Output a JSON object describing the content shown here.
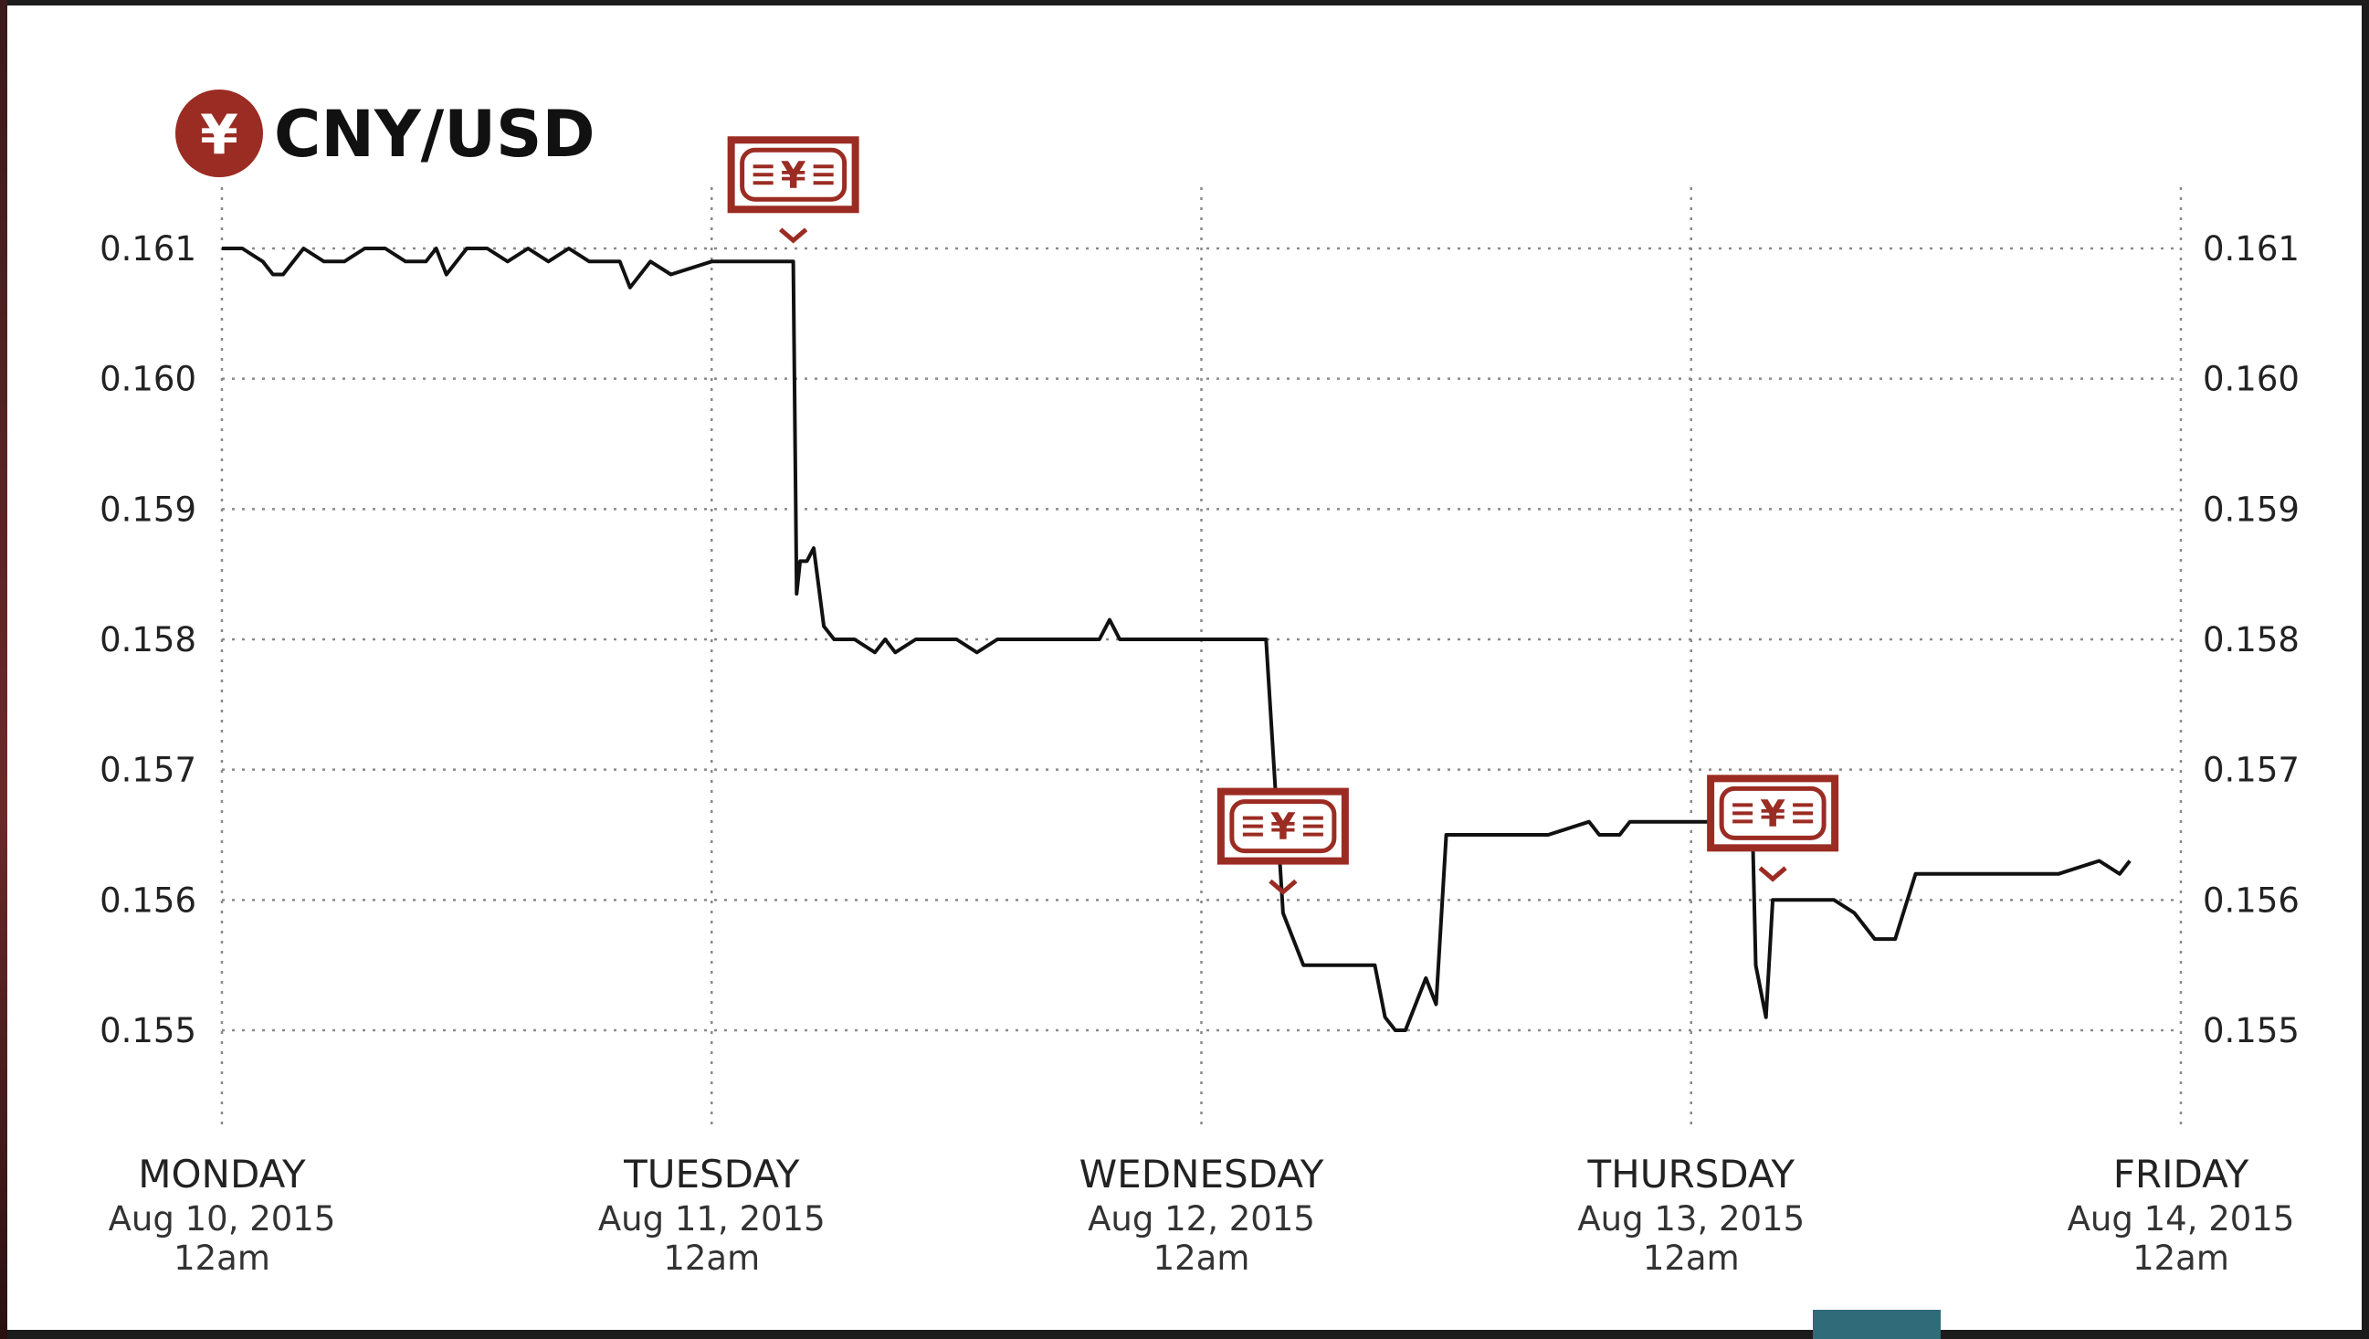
{
  "chart_data": {
    "type": "line",
    "title": "CNY/USD",
    "title_icon": "yen-icon",
    "accent_color": "#9b2c23",
    "xlabel": "",
    "ylabel": "",
    "ylim": [
      0.1545,
      0.1615
    ],
    "yticks": [
      "0.161",
      "0.160",
      "0.159",
      "0.158",
      "0.157",
      "0.156",
      "0.155"
    ],
    "ytick_values": [
      0.161,
      0.16,
      0.159,
      0.158,
      0.157,
      0.156,
      0.155
    ],
    "x_axis_type": "datetime",
    "xlim": [
      "2015-08-10T00:00",
      "2015-08-14T00:00"
    ],
    "xticks": [
      {
        "x": "2015-08-10T00:00",
        "day": "MONDAY",
        "date": "Aug 10, 2015",
        "time": "12am"
      },
      {
        "x": "2015-08-11T00:00",
        "day": "TUESDAY",
        "date": "Aug 11, 2015",
        "time": "12am"
      },
      {
        "x": "2015-08-12T00:00",
        "day": "WEDNESDAY",
        "date": "Aug 12, 2015",
        "time": "12am"
      },
      {
        "x": "2015-08-13T00:00",
        "day": "THURSDAY",
        "date": "Aug 13, 2015",
        "time": "12am"
      },
      {
        "x": "2015-08-14T00:00",
        "day": "FRIDAY",
        "date": "Aug 14, 2015",
        "time": "12am"
      }
    ],
    "grid": true,
    "annotations": [
      {
        "type": "banknote-icon",
        "x": "2015-08-11T04:00"
      },
      {
        "type": "banknote-icon",
        "x": "2015-08-12T04:00"
      },
      {
        "type": "banknote-icon",
        "x": "2015-08-13T04:00"
      }
    ],
    "series": [
      {
        "x": [
          "2015-08-10T00:00",
          "2015-08-10T01:00",
          "2015-08-10T02:00",
          "2015-08-10T02:30",
          "2015-08-10T03:00",
          "2015-08-10T04:00",
          "2015-08-10T05:00",
          "2015-08-10T06:00",
          "2015-08-10T07:00",
          "2015-08-10T08:00",
          "2015-08-10T09:00",
          "2015-08-10T10:00",
          "2015-08-10T10:30",
          "2015-08-10T11:00",
          "2015-08-10T12:00",
          "2015-08-10T13:00",
          "2015-08-10T14:00",
          "2015-08-10T15:00",
          "2015-08-10T16:00",
          "2015-08-10T17:00",
          "2015-08-10T18:00",
          "2015-08-10T19:00",
          "2015-08-10T19:30",
          "2015-08-10T20:00",
          "2015-08-10T21:00",
          "2015-08-10T22:00",
          "2015-08-11T00:00",
          "2015-08-11T01:00",
          "2015-08-11T02:00",
          "2015-08-11T02:30",
          "2015-08-11T03:00",
          "2015-08-11T03:30",
          "2015-08-11T03:50",
          "2015-08-11T04:00",
          "2015-08-11T04:10",
          "2015-08-11T04:20",
          "2015-08-11T04:40",
          "2015-08-11T05:00",
          "2015-08-11T05:30",
          "2015-08-11T06:00",
          "2015-08-11T07:00",
          "2015-08-11T08:00",
          "2015-08-11T08:30",
          "2015-08-11T09:00",
          "2015-08-11T10:00",
          "2015-08-11T11:00",
          "2015-08-11T11:30",
          "2015-08-11T12:00",
          "2015-08-11T13:00",
          "2015-08-11T14:00",
          "2015-08-11T15:00",
          "2015-08-11T16:00",
          "2015-08-11T17:00",
          "2015-08-11T18:00",
          "2015-08-11T19:00",
          "2015-08-11T19:30",
          "2015-08-11T20:00",
          "2015-08-12T00:00",
          "2015-08-12T03:00",
          "2015-08-12T03:10",
          "2015-08-12T04:00",
          "2015-08-12T05:00",
          "2015-08-12T07:00",
          "2015-08-12T08:00",
          "2015-08-12T08:30",
          "2015-08-12T09:00",
          "2015-08-12T09:30",
          "2015-08-12T10:00",
          "2015-08-12T11:00",
          "2015-08-12T11:30",
          "2015-08-12T12:00",
          "2015-08-12T13:00",
          "2015-08-12T15:00",
          "2015-08-12T16:00",
          "2015-08-12T17:00",
          "2015-08-12T19:00",
          "2015-08-12T19:30",
          "2015-08-12T20:00",
          "2015-08-12T20:30",
          "2015-08-12T21:00",
          "2015-08-13T00:00",
          "2015-08-13T00:30",
          "2015-08-13T03:00",
          "2015-08-13T03:10",
          "2015-08-13T03:40",
          "2015-08-13T04:00",
          "2015-08-13T07:00",
          "2015-08-13T08:00",
          "2015-08-13T09:00",
          "2015-08-13T10:00",
          "2015-08-13T11:00",
          "2015-08-13T13:00",
          "2015-08-13T18:00",
          "2015-08-13T20:00",
          "2015-08-13T21:00",
          "2015-08-13T21:30"
        ],
        "y": [
          0.161,
          0.161,
          0.1609,
          0.1608,
          0.1608,
          0.161,
          0.1609,
          0.1609,
          0.161,
          0.161,
          0.1609,
          0.1609,
          0.161,
          0.1608,
          0.161,
          0.161,
          0.1609,
          0.161,
          0.1609,
          0.161,
          0.1609,
          0.1609,
          0.1609,
          0.1607,
          0.1609,
          0.1608,
          0.1609,
          0.1609,
          0.1609,
          0.1609,
          0.1609,
          0.1609,
          0.1609,
          0.1609,
          0.15835,
          0.1586,
          0.1586,
          0.1587,
          0.1581,
          0.158,
          0.158,
          0.1579,
          0.158,
          0.1579,
          0.158,
          0.158,
          0.158,
          0.158,
          0.1579,
          0.158,
          0.158,
          0.158,
          0.158,
          0.158,
          0.158,
          0.15815,
          0.158,
          0.158,
          0.158,
          0.158,
          0.1559,
          0.1555,
          0.1555,
          0.1555,
          0.1555,
          0.1551,
          0.155,
          0.155,
          0.1554,
          0.1552,
          0.1565,
          0.1565,
          0.1565,
          0.1565,
          0.1565,
          0.1566,
          0.1565,
          0.1565,
          0.1565,
          0.1566,
          0.1566,
          0.1566,
          0.1566,
          0.1555,
          0.1551,
          0.156,
          0.156,
          0.1559,
          0.1557,
          0.1557,
          0.1562,
          0.1562,
          0.1562,
          0.1563,
          0.1562,
          0.1563
        ]
      }
    ]
  }
}
